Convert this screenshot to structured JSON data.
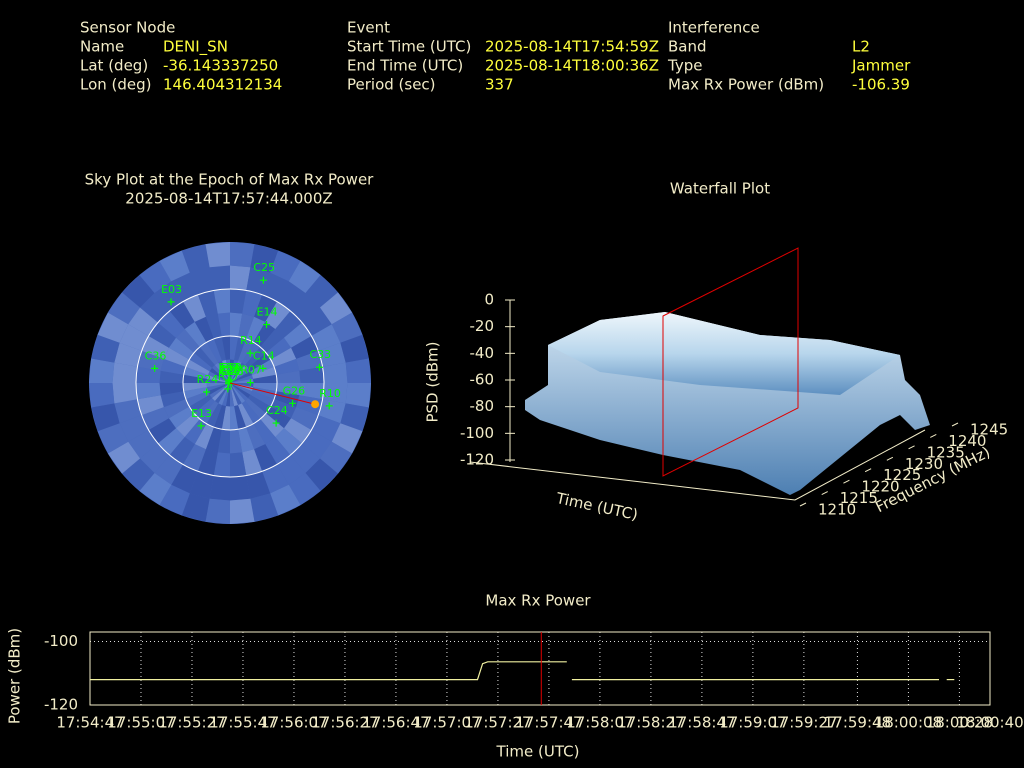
{
  "header": {
    "sensor_node": {
      "title": "Sensor Node",
      "rows": [
        [
          "Name",
          "DENI_SN"
        ],
        [
          "Lat (deg)",
          "-36.143337250"
        ],
        [
          "Lon (deg)",
          "146.404312134"
        ]
      ]
    },
    "event": {
      "title": "Event",
      "rows": [
        [
          "Start Time (UTC)",
          "2025-08-14T17:54:59Z"
        ],
        [
          "End Time (UTC)",
          "2025-08-14T18:00:36Z"
        ],
        [
          "Period (sec)",
          "337"
        ]
      ]
    },
    "interference": {
      "title": "Interference",
      "rows": [
        [
          "Band",
          "L2"
        ],
        [
          "Type",
          "Jammer"
        ],
        [
          "Max Rx Power (dBm)",
          "-106.39"
        ]
      ]
    }
  },
  "chart_data": [
    {
      "type": "polar-scatter",
      "title": "Sky Plot at the Epoch of Max Rx Power",
      "subtitle": "2025-08-14T17:57:44.000Z",
      "rlim": [
        90,
        0
      ],
      "rticks": [
        0,
        30,
        60
      ],
      "azticks": [
        0,
        30,
        60,
        90,
        120,
        150,
        180,
        210,
        240,
        270,
        300,
        330
      ],
      "color": "#00ff00",
      "satellites": [
        {
          "name": "E30",
          "az": 16,
          "el": 2
        },
        {
          "name": "E07",
          "az": 332,
          "el": 2
        },
        {
          "name": "C28",
          "az": 320,
          "el": 1
        },
        {
          "name": "R14",
          "az": 34,
          "el": 23
        },
        {
          "name": "E14",
          "az": 32,
          "el": 44
        },
        {
          "name": "C14",
          "az": 66,
          "el": 23
        },
        {
          "name": "R07",
          "az": 89,
          "el": 13
        },
        {
          "name": "G26",
          "az": 108,
          "el": 42
        },
        {
          "name": "C24",
          "az": 131,
          "el": 39
        },
        {
          "name": "G28",
          "az": 127,
          "el": 1
        },
        {
          "name": "E13",
          "az": 214,
          "el": 33
        },
        {
          "name": "R17",
          "az": 200,
          "el": 4
        },
        {
          "name": "R24",
          "az": 249,
          "el": 16
        },
        {
          "name": "C30",
          "az": 240,
          "el": 1
        },
        {
          "name": "C36",
          "az": 281,
          "el": 49
        },
        {
          "name": "E03",
          "az": 324,
          "el": 64
        },
        {
          "name": "R10",
          "az": 103,
          "el": 65
        },
        {
          "name": "C33",
          "az": 80,
          "el": 58
        },
        {
          "name": "C25",
          "az": 18,
          "el": 69
        },
        {
          "name": "E27",
          "az": 296,
          "el": 1
        }
      ],
      "source": {
        "az": 104,
        "el": 56
      },
      "source_color": "#ffa500",
      "source_line_color": "#e00000"
    },
    {
      "type": "surface",
      "title": "Waterfall Plot",
      "xlabel": "Time (UTC)",
      "ylabel": "Frequency (MHz)",
      "zlabel": "PSD (dBm)",
      "zlim": [
        -120,
        0
      ],
      "zticks": [
        0,
        -20,
        -40,
        -60,
        -80,
        -100,
        -120
      ],
      "ylim": [
        1210,
        1245
      ],
      "yticks": [
        1210,
        1215,
        1220,
        1225,
        1230,
        1235,
        1240,
        1245
      ]
    },
    {
      "type": "line",
      "title": "Max Rx Power",
      "xlabel": "Time (UTC)",
      "ylabel": "Power (dBm)",
      "xlim": [
        64487,
        64840
      ],
      "xticks": [
        {
          "value": 64487,
          "label": "17:54:47"
        },
        {
          "value": 64507,
          "label": "17:55:07"
        },
        {
          "value": 64527,
          "label": "17:55:27"
        },
        {
          "value": 64547,
          "label": "17:55:47"
        },
        {
          "value": 64567,
          "label": "17:56:07"
        },
        {
          "value": 64587,
          "label": "17:56:27"
        },
        {
          "value": 64607,
          "label": "17:56:47"
        },
        {
          "value": 64627,
          "label": "17:57:07"
        },
        {
          "value": 64647,
          "label": "17:57:27"
        },
        {
          "value": 64667,
          "label": "17:57:47"
        },
        {
          "value": 64687,
          "label": "17:58:07"
        },
        {
          "value": 64707,
          "label": "17:58:27"
        },
        {
          "value": 64727,
          "label": "17:58:47"
        },
        {
          "value": 64747,
          "label": "17:59:07"
        },
        {
          "value": 64767,
          "label": "17:59:27"
        },
        {
          "value": 64788,
          "label": "17:59:48"
        },
        {
          "value": 64808,
          "label": "18:00:08"
        },
        {
          "value": 64828,
          "label": "18:00:28"
        },
        {
          "value": 64840,
          "label": "18:00:40"
        }
      ],
      "ylim": [
        -120,
        -97
      ],
      "yticks": [
        -120,
        -100
      ],
      "grid": true,
      "x": [
        64487,
        64560,
        64639,
        64641,
        64643,
        64674,
        64675,
        64676,
        64820,
        64822,
        64823,
        64826
      ],
      "series": [
        {
          "color": "#f0f0a0",
          "values": [
            -112,
            -112,
            -112,
            -107,
            -106.4,
            -106.4,
            null,
            -112,
            -112,
            null,
            -112,
            -112
          ]
        }
      ],
      "marker_x": 64664,
      "marker_color": "#e00000"
    }
  ]
}
